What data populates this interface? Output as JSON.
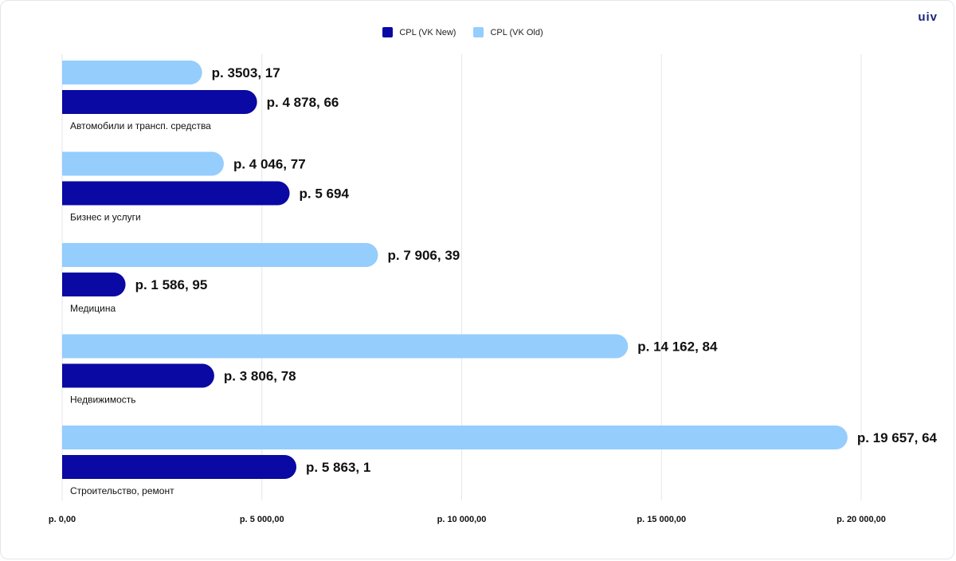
{
  "brand": {
    "logo_text": "uiv"
  },
  "legend": [
    {
      "name": "CPL (VK New)",
      "color": "#0a09a3"
    },
    {
      "name": "CPL (VK Old)",
      "color": "#95cdfd"
    }
  ],
  "chart_data": {
    "type": "bar",
    "orientation": "horizontal",
    "categories": [
      "Автомобили и трансп. средства",
      "Бизнес и услуги",
      "Медицина",
      "Недвижимость",
      "Строительство, ремонт"
    ],
    "series": [
      {
        "name": "CPL (VK Old)",
        "color": "#95cdfd",
        "values": [
          3503.17,
          4046.77,
          7906.39,
          14162.84,
          19657.64
        ],
        "labels": [
          "р. 3503, 17",
          "р. 4 046, 77",
          "р. 7 906, 39",
          "р. 14 162, 84",
          "р. 19 657, 64"
        ]
      },
      {
        "name": "CPL (VK New)",
        "color": "#0a09a3",
        "values": [
          4878.66,
          5694,
          1586.95,
          3806.78,
          5863.1
        ],
        "labels": [
          "р. 4 878, 66",
          "р. 5 694",
          "р. 1 586, 95",
          "р. 3 806, 78",
          "р. 5 863, 1"
        ]
      }
    ],
    "xlim": [
      0,
      20000
    ],
    "xticks": [
      {
        "value": 0,
        "label": "р. 0,00"
      },
      {
        "value": 5000,
        "label": "р. 5 000,00"
      },
      {
        "value": 10000,
        "label": "р. 10 000,00"
      },
      {
        "value": 15000,
        "label": "р. 15 000,00"
      },
      {
        "value": 20000,
        "label": "р. 20 000,00"
      }
    ],
    "grid": true,
    "legend_position": "top-center"
  }
}
